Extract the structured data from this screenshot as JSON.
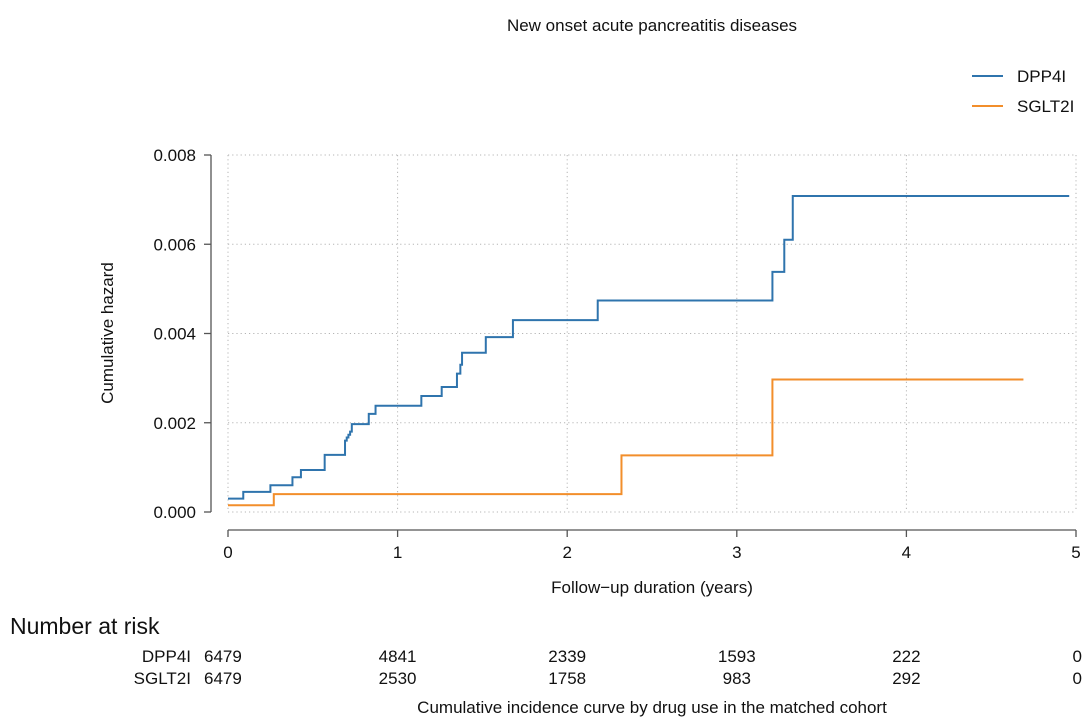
{
  "chart_data": {
    "type": "line",
    "step": true,
    "title": "New onset acute pancreatitis diseases",
    "xlabel": "Follow−up duration (years)",
    "ylabel": "Cumulative hazard",
    "caption": "Cumulative incidence curve by drug use in the matched cohort",
    "xlim": [
      0,
      5
    ],
    "ylim": [
      0,
      0.008
    ],
    "xticks": [
      0,
      1,
      2,
      3,
      4,
      5
    ],
    "xtick_labels": [
      "0",
      "1",
      "2",
      "3",
      "4",
      "5"
    ],
    "yticks": [
      0,
      0.002,
      0.004,
      0.006,
      0.008
    ],
    "ytick_labels": [
      "0.000",
      "0.002",
      "0.004",
      "0.006",
      "0.008"
    ],
    "grid": true,
    "legend_position": "top-right",
    "series": [
      {
        "name": "DPP4I",
        "color": "#2f74ad",
        "x": [
          0,
          0.09,
          0.25,
          0.38,
          0.43,
          0.57,
          0.69,
          0.7,
          0.71,
          0.72,
          0.73,
          0.83,
          0.87,
          1.14,
          1.26,
          1.35,
          1.37,
          1.38,
          1.52,
          1.68,
          2.18,
          3.21,
          3.28,
          3.33,
          4.96
        ],
        "y": [
          0.0003,
          0.00045,
          0.0006,
          0.00078,
          0.00094,
          0.00128,
          0.0016,
          0.00167,
          0.00173,
          0.0018,
          0.00197,
          0.0022,
          0.00238,
          0.0026,
          0.0028,
          0.0031,
          0.0033,
          0.00357,
          0.00392,
          0.0043,
          0.00474,
          0.00538,
          0.0061,
          0.00708,
          0.00708
        ]
      },
      {
        "name": "SGLT2I",
        "color": "#f28e2b",
        "x": [
          0,
          0.27,
          2.32,
          3.21,
          4.69
        ],
        "y": [
          0.00015,
          0.0004,
          0.00127,
          0.00297,
          0.00297
        ]
      }
    ],
    "risk_table": {
      "title": "Number at risk",
      "times": [
        0,
        1,
        2,
        3,
        4,
        5
      ],
      "rows": [
        {
          "name": "DPP4I",
          "counts": [
            "6479",
            "4841",
            "2339",
            "1593",
            "222",
            "0"
          ]
        },
        {
          "name": "SGLT2I",
          "counts": [
            "6479",
            "2530",
            "1758",
            "983",
            "292",
            "0"
          ]
        }
      ]
    }
  }
}
